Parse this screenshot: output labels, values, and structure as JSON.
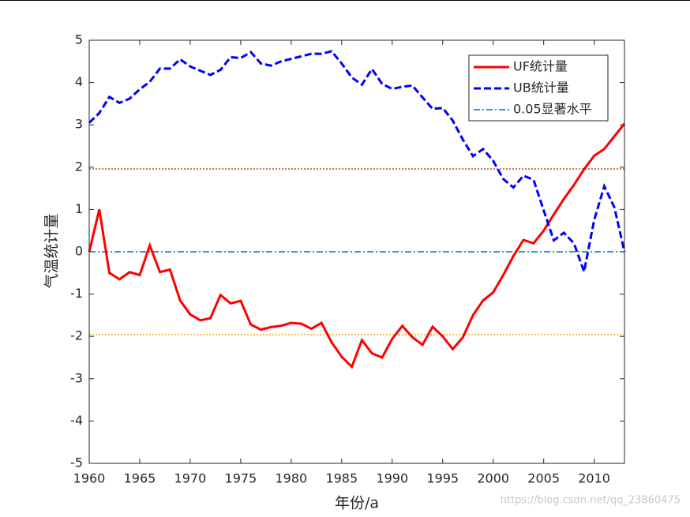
{
  "chart_data": {
    "type": "line",
    "xlabel": "年份/a",
    "ylabel": "气温统计量",
    "x": [
      1960,
      1961,
      1962,
      1963,
      1964,
      1965,
      1966,
      1967,
      1968,
      1969,
      1970,
      1971,
      1972,
      1973,
      1974,
      1975,
      1976,
      1977,
      1978,
      1979,
      1980,
      1981,
      1982,
      1983,
      1984,
      1985,
      1986,
      1987,
      1988,
      1989,
      1990,
      1991,
      1992,
      1993,
      1994,
      1995,
      1996,
      1997,
      1998,
      1999,
      2000,
      2001,
      2002,
      2003,
      2004,
      2005,
      2006,
      2007,
      2008,
      2009,
      2010,
      2011,
      2012,
      2013
    ],
    "series": [
      {
        "name": "UF统计量",
        "color": "#ff0000",
        "dash": "solid",
        "values": [
          0,
          1.0,
          -0.5,
          -0.65,
          -0.48,
          -0.55,
          0.15,
          -0.48,
          -0.42,
          -1.15,
          -1.48,
          -1.62,
          -1.57,
          -1.02,
          -1.22,
          -1.16,
          -1.72,
          -1.84,
          -1.78,
          -1.75,
          -1.68,
          -1.7,
          -1.82,
          -1.68,
          -2.14,
          -2.48,
          -2.72,
          -2.09,
          -2.4,
          -2.5,
          -2.06,
          -1.75,
          -2.02,
          -2.2,
          -1.77,
          -2.0,
          -2.3,
          -2.02,
          -1.5,
          -1.15,
          -0.96,
          -0.55,
          -0.1,
          0.28,
          0.2,
          0.5,
          0.88,
          1.25,
          1.58,
          1.95,
          2.27,
          2.43,
          2.73,
          3.03
        ]
      },
      {
        "name": "UB统计量",
        "color": "#0000ff",
        "dash": "dashed",
        "values": [
          3.05,
          3.28,
          3.66,
          3.52,
          3.62,
          3.84,
          4.02,
          4.33,
          4.33,
          4.55,
          4.38,
          4.28,
          4.18,
          4.3,
          4.6,
          4.58,
          4.72,
          4.45,
          4.4,
          4.5,
          4.56,
          4.62,
          4.68,
          4.68,
          4.74,
          4.45,
          4.12,
          3.95,
          4.32,
          3.97,
          3.85,
          3.9,
          3.93,
          3.65,
          3.38,
          3.4,
          3.1,
          2.65,
          2.26,
          2.43,
          2.15,
          1.72,
          1.52,
          1.8,
          1.7,
          0.98,
          0.27,
          0.45,
          0.2,
          -0.47,
          0.75,
          1.55,
          1.05,
          0
        ]
      }
    ],
    "reference_lines": [
      {
        "value": 1.96,
        "color": "#a0522d",
        "dash": "dotted"
      },
      {
        "value": 0,
        "color": "#0072bd",
        "dash": "dashdot",
        "name": "0.05显著水平"
      },
      {
        "value": -1.96,
        "color": "#edb120",
        "dash": "dotted"
      }
    ],
    "xlim": [
      1960,
      2013
    ],
    "xticks": [
      1960,
      1965,
      1970,
      1975,
      1980,
      1985,
      1990,
      1995,
      2000,
      2005,
      2010
    ],
    "ylim": [
      -5,
      5
    ],
    "yticks": [
      -5,
      -4,
      -3,
      -2,
      -1,
      0,
      1,
      2,
      3,
      4,
      5
    ],
    "legend": "upper right",
    "watermark": "https://blog.csdn.net/qq_23860475"
  }
}
